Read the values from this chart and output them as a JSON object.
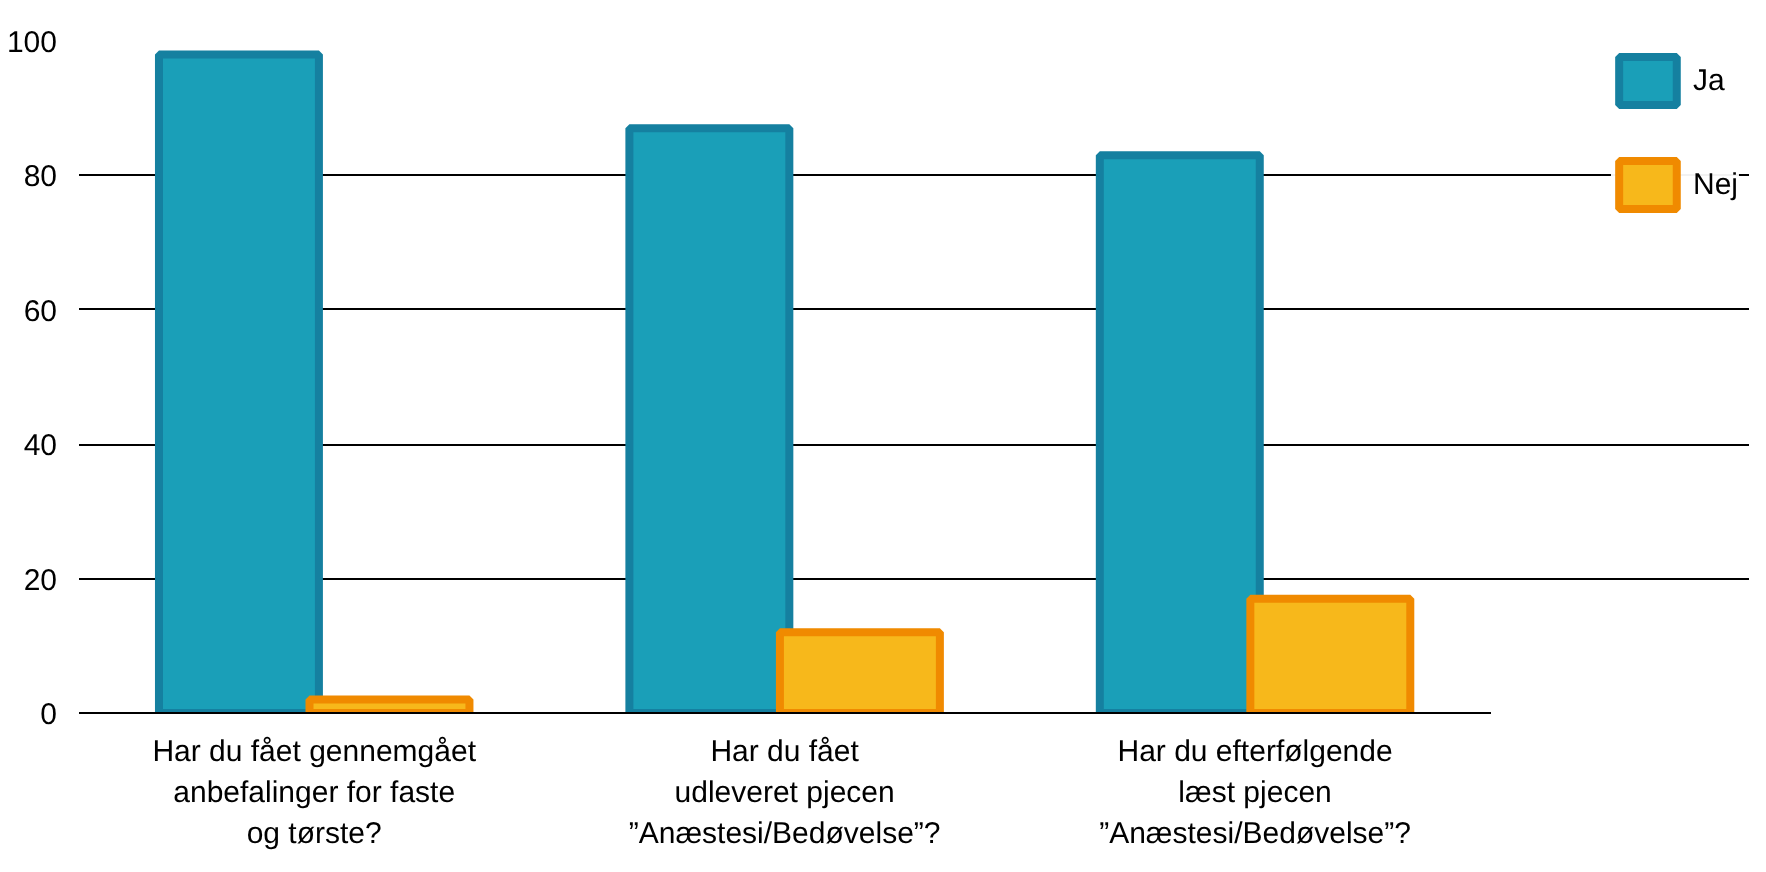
{
  "chart_data": {
    "type": "bar",
    "categories": [
      "Har du fået gennemgået\nanbefalinger for faste\nog tørste?",
      "Har du fået\nudleveret pjecen\n”Anæstesi/Bedøvelse”?",
      "Har du efterfølgende\nlæst pjecen\n”Anæstesi/Bedøvelse”?"
    ],
    "series": [
      {
        "name": "Ja",
        "color": "#1a9fb8",
        "values": [
          98,
          87,
          83
        ]
      },
      {
        "name": "Nej",
        "color": "#f7b81b",
        "values": [
          2,
          12,
          17
        ]
      }
    ],
    "ylim": [
      0,
      100
    ],
    "yticks": [
      0,
      20,
      40,
      60,
      80,
      100
    ],
    "grid": "y",
    "legend": "right"
  }
}
